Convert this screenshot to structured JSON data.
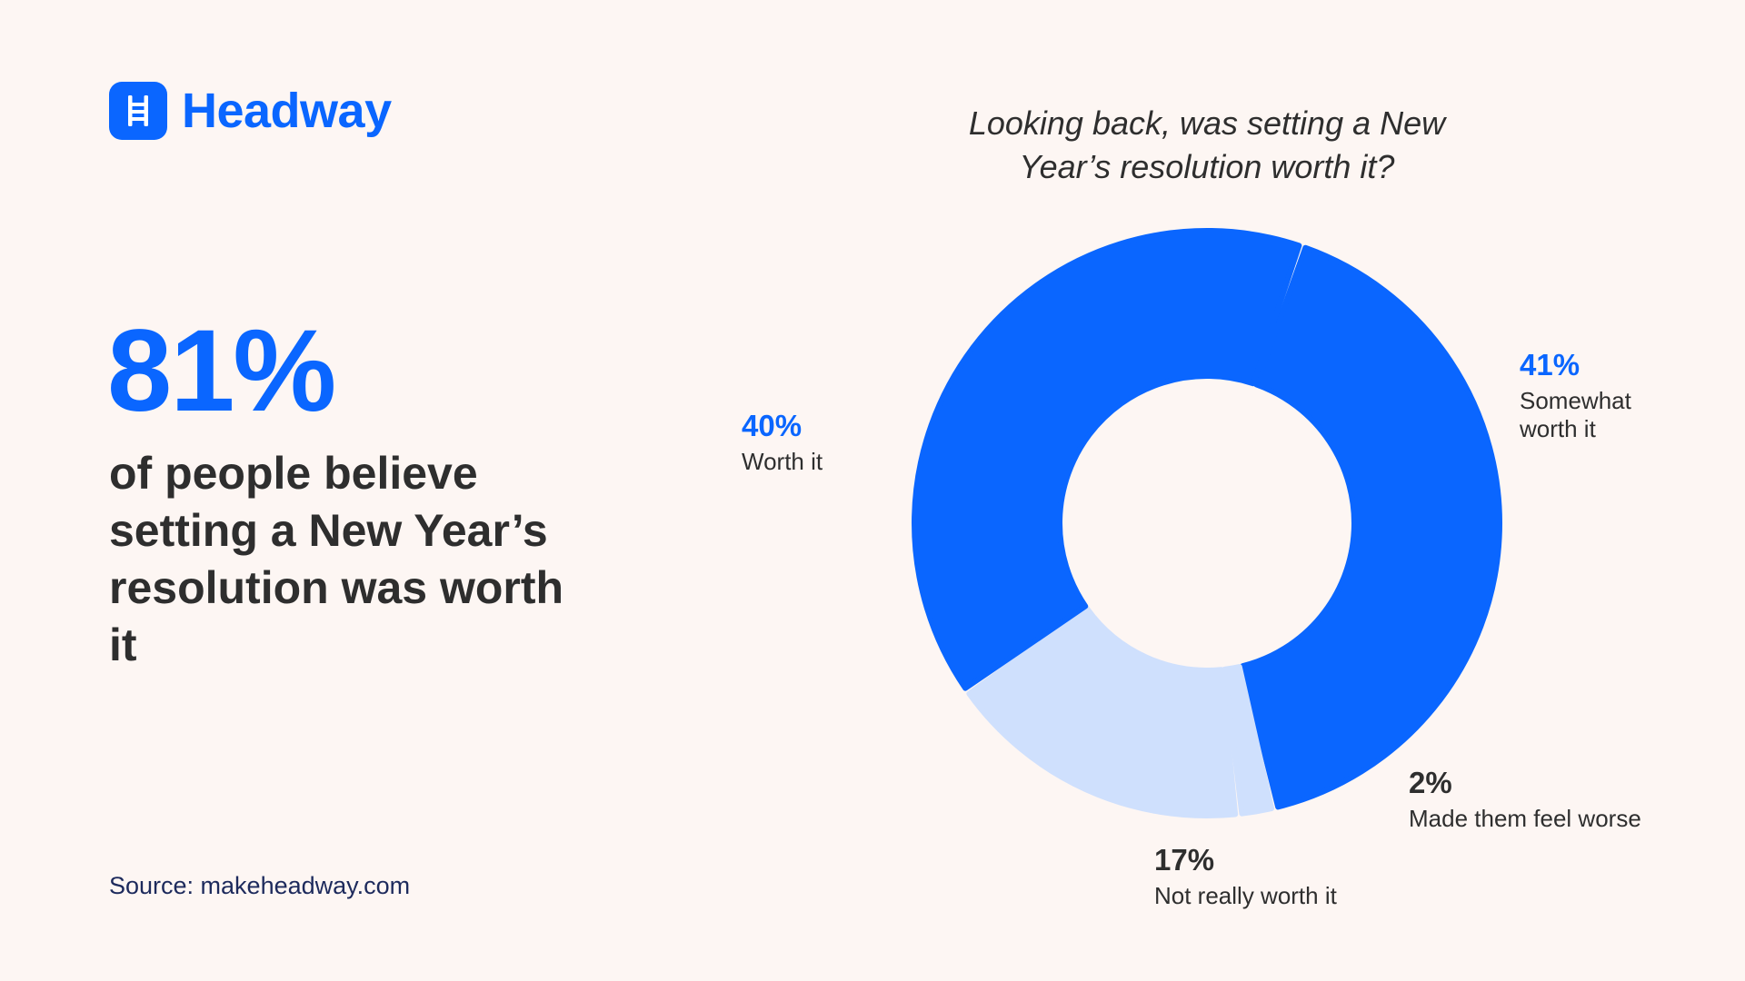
{
  "brand": {
    "name": "Headway",
    "color": "#0a66ff"
  },
  "headline": {
    "stat": "81%",
    "description": "of people believe setting a New Year’s resolution was worth it"
  },
  "source": "Source: makeheadway.com",
  "chart_data": {
    "type": "pie",
    "variant": "donut",
    "title": "Looking back, was setting a New Year’s resolution worth it?",
    "slices": [
      {
        "label": "Somewhat worth it",
        "value": 41,
        "display": "41%",
        "color": "#0a66ff"
      },
      {
        "label": "Made them feel worse",
        "value": 2,
        "display": "2%",
        "color": "#cfe0fd"
      },
      {
        "label": "Not really worth it",
        "value": 17,
        "display": "17%",
        "color": "#cfe0fd"
      },
      {
        "label": "Worth it",
        "value": 40,
        "display": "40%",
        "color": "#0a66ff"
      }
    ]
  }
}
